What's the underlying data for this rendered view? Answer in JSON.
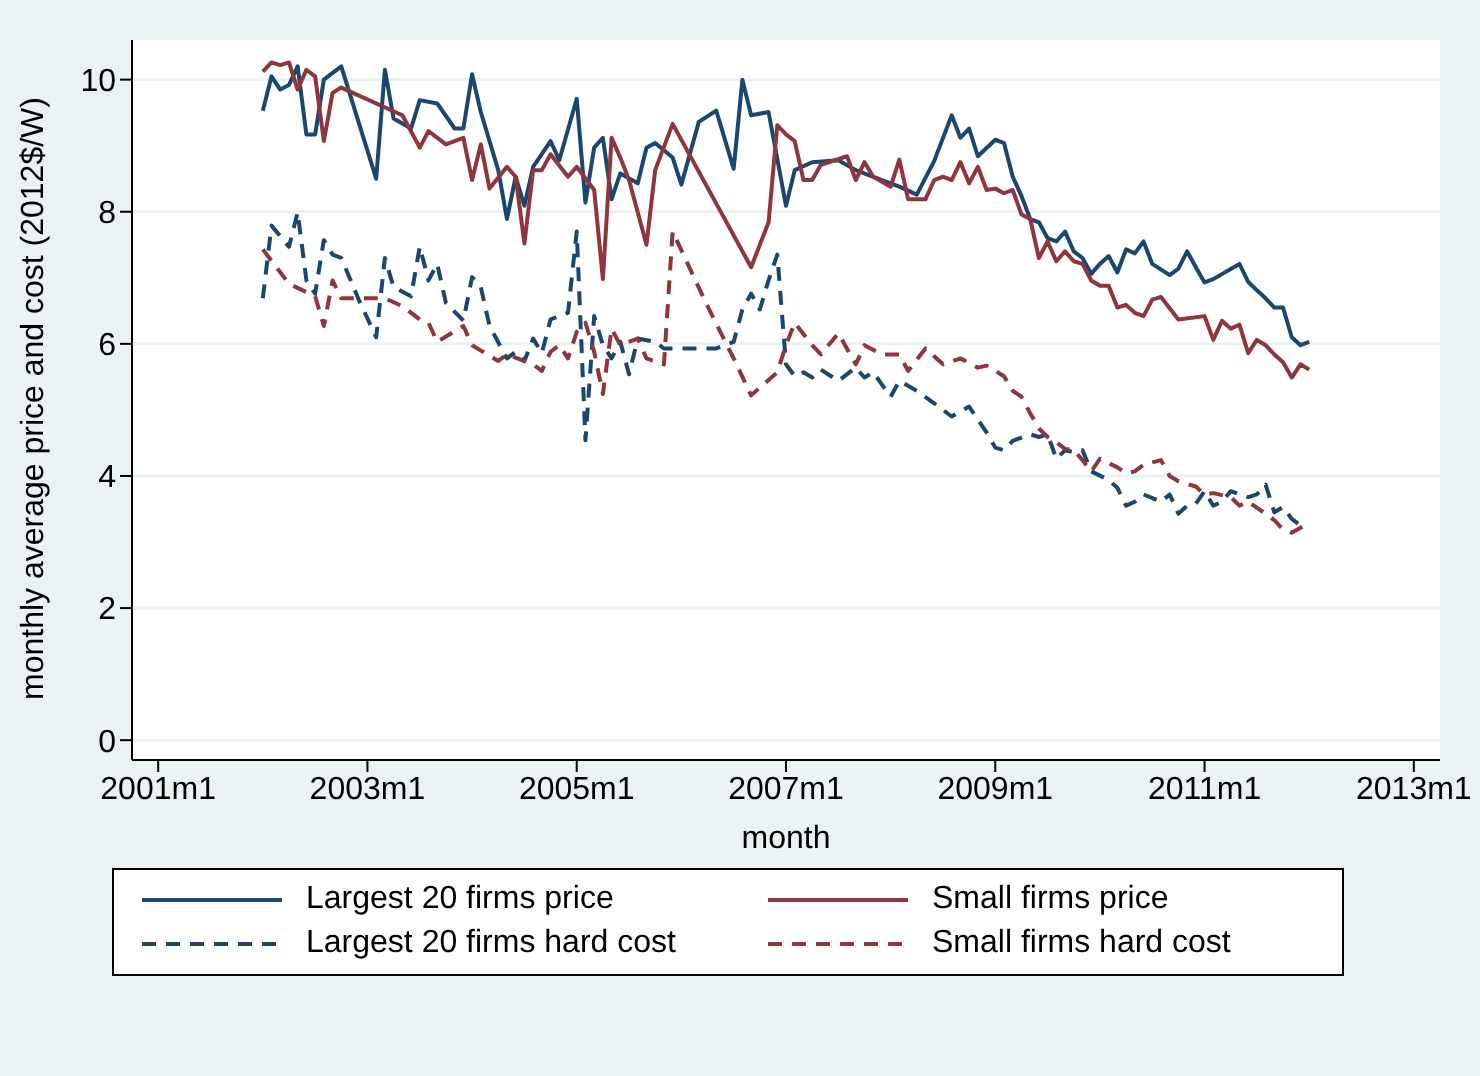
{
  "chart_data": {
    "type": "line",
    "xlabel": "month",
    "ylabel": "monthly average price and cost (2012$/W)",
    "xlim": [
      "2000-10",
      "2013-04"
    ],
    "xticks": [
      {
        "value": "2001-01",
        "label": "2001m1"
      },
      {
        "value": "2003-01",
        "label": "2003m1"
      },
      {
        "value": "2005-01",
        "label": "2005m1"
      },
      {
        "value": "2007-01",
        "label": "2007m1"
      },
      {
        "value": "2009-01",
        "label": "2009m1"
      },
      {
        "value": "2011-01",
        "label": "2011m1"
      },
      {
        "value": "2013-01",
        "label": "2013m1"
      }
    ],
    "ylim": [
      -0.3,
      10.6
    ],
    "yticks": [
      0,
      2,
      4,
      6,
      8,
      10
    ],
    "grid": "y",
    "legend": "bottom",
    "marker": "none",
    "series": [
      {
        "name": "Largest 20 firms price",
        "color": "#1a476f",
        "line_style": "solid",
        "x": [
          "2002-01",
          "2002-02",
          "2002-03",
          "2002-04",
          "2002-05",
          "2002-06",
          "2002-07",
          "2002-08",
          "2002-10",
          "2003-02",
          "2003-03",
          "2003-04",
          "2003-06",
          "2003-07",
          "2003-09",
          "2003-11",
          "2003-12",
          "2004-01",
          "2004-02",
          "2004-04",
          "2004-05",
          "2004-06",
          "2004-07",
          "2004-08",
          "2004-10",
          "2004-11",
          "2005-01",
          "2005-02",
          "2005-03",
          "2005-04",
          "2005-05",
          "2005-06",
          "2005-08",
          "2005-09",
          "2005-10",
          "2005-12",
          "2006-01",
          "2006-03",
          "2006-05",
          "2006-07",
          "2006-08",
          "2006-09",
          "2006-11",
          "2007-01",
          "2007-02",
          "2007-04",
          "2007-07",
          "2007-09",
          "2007-12",
          "2008-02",
          "2008-04",
          "2008-06",
          "2008-08",
          "2008-09",
          "2008-10",
          "2008-11",
          "2009-01",
          "2009-02",
          "2009-03",
          "2009-04",
          "2009-05",
          "2009-06",
          "2009-07",
          "2009-08",
          "2009-09",
          "2009-10",
          "2009-11",
          "2009-12",
          "2010-01",
          "2010-02",
          "2010-03",
          "2010-04",
          "2010-05",
          "2010-06",
          "2010-07",
          "2010-09",
          "2010-10",
          "2010-11",
          "2010-12",
          "2011-01",
          "2011-02",
          "2011-05",
          "2011-06",
          "2011-07",
          "2011-08",
          "2011-09",
          "2011-10",
          "2011-11",
          "2011-12",
          "2012-01"
        ],
        "values": [
          9.53,
          10.05,
          9.85,
          9.92,
          10.2,
          9.17,
          9.17,
          10.0,
          10.2,
          8.5,
          10.15,
          9.41,
          9.26,
          9.69,
          9.64,
          9.26,
          9.26,
          10.08,
          9.51,
          8.63,
          7.89,
          8.53,
          8.09,
          8.68,
          9.07,
          8.78,
          9.71,
          8.14,
          8.97,
          9.12,
          8.19,
          8.58,
          8.43,
          8.97,
          9.04,
          8.82,
          8.41,
          9.36,
          9.53,
          8.65,
          10.0,
          9.46,
          9.51,
          8.09,
          8.63,
          8.75,
          8.78,
          8.63,
          8.48,
          8.38,
          8.26,
          8.77,
          9.46,
          9.12,
          9.26,
          8.84,
          9.09,
          9.04,
          8.53,
          8.24,
          7.89,
          7.84,
          7.6,
          7.55,
          7.7,
          7.4,
          7.3,
          7.06,
          7.21,
          7.33,
          7.08,
          7.43,
          7.37,
          7.55,
          7.21,
          7.04,
          7.14,
          7.4,
          7.16,
          6.93,
          6.98,
          7.21,
          6.94,
          6.81,
          6.69,
          6.55,
          6.55,
          6.1,
          5.98,
          6.03
        ]
      },
      {
        "name": "Small firms price",
        "color": "#90353b",
        "line_style": "solid",
        "x": [
          "2002-01",
          "2002-02",
          "2002-03",
          "2002-04",
          "2002-05",
          "2002-06",
          "2002-07",
          "2002-08",
          "2002-09",
          "2002-10",
          "2003-05",
          "2003-07",
          "2003-08",
          "2003-10",
          "2003-12",
          "2004-01",
          "2004-02",
          "2004-03",
          "2004-05",
          "2004-06",
          "2004-07",
          "2004-08",
          "2004-09",
          "2004-10",
          "2004-12",
          "2005-01",
          "2005-03",
          "2005-04",
          "2005-05",
          "2005-06",
          "2005-07",
          "2005-09",
          "2005-10",
          "2005-12",
          "2006-09",
          "2006-11",
          "2006-12",
          "2007-01",
          "2007-02",
          "2007-03",
          "2007-04",
          "2007-05",
          "2007-08",
          "2007-09",
          "2007-10",
          "2007-11",
          "2008-01",
          "2008-02",
          "2008-03",
          "2008-05",
          "2008-06",
          "2008-07",
          "2008-08",
          "2008-09",
          "2008-10",
          "2008-11",
          "2008-12",
          "2009-01",
          "2009-02",
          "2009-03",
          "2009-04",
          "2009-05",
          "2009-06",
          "2009-07",
          "2009-08",
          "2009-09",
          "2009-10",
          "2009-11",
          "2009-12",
          "2010-01",
          "2010-02",
          "2010-03",
          "2010-04",
          "2010-05",
          "2010-06",
          "2010-07",
          "2010-08",
          "2010-10",
          "2011-01",
          "2011-02",
          "2011-03",
          "2011-04",
          "2011-05",
          "2011-06",
          "2011-07",
          "2011-08",
          "2011-09",
          "2011-10",
          "2011-11",
          "2011-12",
          "2012-01"
        ],
        "values": [
          10.12,
          10.26,
          10.22,
          10.26,
          9.85,
          10.15,
          10.05,
          9.07,
          9.8,
          9.88,
          9.46,
          8.97,
          9.22,
          9.02,
          9.12,
          8.48,
          9.02,
          8.35,
          8.68,
          8.53,
          7.52,
          8.63,
          8.63,
          8.87,
          8.53,
          8.68,
          8.33,
          6.98,
          9.12,
          8.82,
          8.48,
          7.5,
          8.63,
          9.33,
          7.16,
          7.84,
          9.31,
          9.17,
          9.07,
          8.48,
          8.48,
          8.71,
          8.84,
          8.48,
          8.75,
          8.53,
          8.38,
          8.79,
          8.19,
          8.19,
          8.48,
          8.53,
          8.48,
          8.75,
          8.43,
          8.68,
          8.33,
          8.35,
          8.28,
          8.33,
          7.96,
          7.89,
          7.3,
          7.55,
          7.25,
          7.4,
          7.25,
          7.21,
          6.96,
          6.88,
          6.88,
          6.55,
          6.59,
          6.47,
          6.42,
          6.67,
          6.71,
          6.37,
          6.42,
          6.06,
          6.35,
          6.23,
          6.29,
          5.86,
          6.06,
          5.98,
          5.84,
          5.72,
          5.49,
          5.69,
          5.61
        ]
      },
      {
        "name": "Largest 20 firms hard cost",
        "color": "#1a476f",
        "line_style": "dashed",
        "x": [
          "2002-01",
          "2002-02",
          "2002-04",
          "2002-05",
          "2002-06",
          "2002-07",
          "2002-08",
          "2002-09",
          "2002-10",
          "2002-12",
          "2003-02",
          "2003-03",
          "2003-04",
          "2003-06",
          "2003-07",
          "2003-08",
          "2003-09",
          "2003-10",
          "2003-12",
          "2004-01",
          "2004-02",
          "2004-03",
          "2004-05",
          "2004-06",
          "2004-07",
          "2004-08",
          "2004-09",
          "2004-10",
          "2004-12",
          "2005-01",
          "2005-02",
          "2005-03",
          "2005-04",
          "2005-05",
          "2005-06",
          "2005-07",
          "2005-08",
          "2005-10",
          "2005-11",
          "2006-05",
          "2006-07",
          "2006-08",
          "2006-09",
          "2006-10",
          "2006-11",
          "2006-12",
          "2007-01",
          "2007-02",
          "2007-03",
          "2007-04",
          "2007-05",
          "2007-07",
          "2007-09",
          "2007-10",
          "2007-11",
          "2008-01",
          "2008-02",
          "2008-04",
          "2008-06",
          "2008-08",
          "2008-10",
          "2008-12",
          "2009-01",
          "2009-02",
          "2009-03",
          "2009-05",
          "2009-06",
          "2009-07",
          "2009-08",
          "2009-09",
          "2009-10",
          "2009-11",
          "2009-12",
          "2010-02",
          "2010-03",
          "2010-04",
          "2010-05",
          "2010-06",
          "2010-08",
          "2010-09",
          "2010-10",
          "2010-11",
          "2010-12",
          "2011-01",
          "2011-02",
          "2011-03",
          "2011-04",
          "2011-06",
          "2011-07",
          "2011-08",
          "2011-09",
          "2011-10",
          "2011-11",
          "2011-12"
        ],
        "values": [
          6.69,
          7.79,
          7.47,
          7.99,
          6.96,
          6.76,
          7.57,
          7.35,
          7.3,
          6.67,
          6.1,
          7.3,
          6.86,
          6.72,
          7.47,
          6.96,
          7.21,
          6.62,
          6.35,
          7.01,
          6.86,
          6.27,
          5.78,
          5.88,
          5.74,
          6.08,
          5.86,
          6.37,
          6.47,
          7.7,
          4.54,
          6.42,
          5.98,
          5.78,
          6.03,
          5.54,
          6.08,
          6.03,
          5.93,
          5.93,
          6.03,
          6.52,
          6.76,
          6.52,
          6.96,
          7.35,
          5.69,
          5.51,
          5.57,
          5.49,
          5.61,
          5.44,
          5.64,
          5.49,
          5.57,
          5.2,
          5.44,
          5.29,
          5.1,
          4.9,
          5.05,
          4.66,
          4.43,
          4.39,
          4.53,
          4.63,
          4.59,
          4.63,
          4.26,
          4.39,
          4.36,
          4.39,
          4.07,
          3.94,
          3.82,
          3.55,
          3.61,
          3.72,
          3.61,
          3.72,
          3.43,
          3.55,
          3.58,
          3.77,
          3.55,
          3.61,
          3.77,
          3.68,
          3.72,
          3.87,
          3.45,
          3.53,
          3.35,
          3.25
        ]
      },
      {
        "name": "Small firms hard cost",
        "color": "#90353b",
        "line_style": "dashed",
        "x": [
          "2002-01",
          "2002-04",
          "2002-07",
          "2002-08",
          "2002-09",
          "2002-10",
          "2003-03",
          "2003-05",
          "2003-07",
          "2003-08",
          "2003-09",
          "2003-12",
          "2004-01",
          "2004-04",
          "2004-05",
          "2004-07",
          "2004-08",
          "2004-09",
          "2004-10",
          "2004-11",
          "2004-12",
          "2005-01",
          "2005-02",
          "2005-03",
          "2005-04",
          "2005-05",
          "2005-06",
          "2005-08",
          "2005-09",
          "2005-11",
          "2005-12",
          "2006-04",
          "2006-07",
          "2006-09",
          "2006-12",
          "2007-01",
          "2007-02",
          "2007-04",
          "2007-05",
          "2007-07",
          "2007-09",
          "2007-10",
          "2007-12",
          "2008-02",
          "2008-03",
          "2008-05",
          "2008-07",
          "2008-09",
          "2008-11",
          "2008-12",
          "2009-02",
          "2009-03",
          "2009-04",
          "2009-05",
          "2009-06",
          "2009-07",
          "2009-08",
          "2009-09",
          "2009-10",
          "2009-11",
          "2009-12",
          "2010-01",
          "2010-03",
          "2010-04",
          "2010-05",
          "2010-06",
          "2010-08",
          "2010-09",
          "2010-10",
          "2010-12",
          "2011-01",
          "2011-02",
          "2011-04",
          "2011-05",
          "2011-06",
          "2011-08",
          "2011-09",
          "2011-10",
          "2011-11",
          "2012-01"
        ],
        "values": [
          7.43,
          6.91,
          6.72,
          6.27,
          6.96,
          6.69,
          6.69,
          6.57,
          6.37,
          6.32,
          6.03,
          6.27,
          5.98,
          5.74,
          5.84,
          5.74,
          5.69,
          5.59,
          5.88,
          5.98,
          5.78,
          6.18,
          6.32,
          5.88,
          5.24,
          6.23,
          5.98,
          6.08,
          5.78,
          5.69,
          7.7,
          6.57,
          5.78,
          5.22,
          5.57,
          5.98,
          6.32,
          5.98,
          5.84,
          6.16,
          5.69,
          5.98,
          5.84,
          5.84,
          5.59,
          5.93,
          5.69,
          5.78,
          5.64,
          5.67,
          5.51,
          5.29,
          5.2,
          4.95,
          4.72,
          4.59,
          4.51,
          4.41,
          4.39,
          4.24,
          4.07,
          4.26,
          4.13,
          4.04,
          4.07,
          4.17,
          4.24,
          4.0,
          3.92,
          3.84,
          3.72,
          3.74,
          3.68,
          3.55,
          3.61,
          3.43,
          3.33,
          3.19,
          3.14,
          3.29
        ]
      }
    ]
  }
}
